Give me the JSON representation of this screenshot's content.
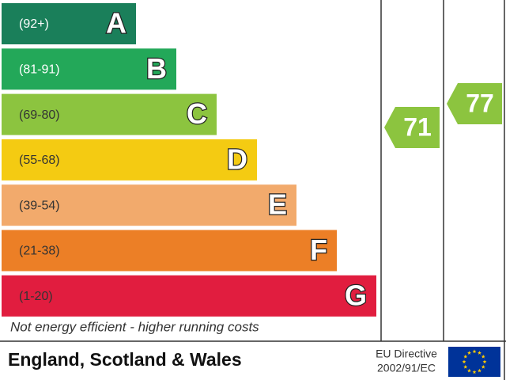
{
  "bands": [
    {
      "range": "(92+)",
      "letter": "A",
      "color": "#1a7f5a",
      "text_color": "#ffffff"
    },
    {
      "range": "(81-91)",
      "letter": "B",
      "color": "#23a859",
      "text_color": "#ffffff"
    },
    {
      "range": "(69-80)",
      "letter": "C",
      "color": "#8cc43f",
      "text_color": "#333333"
    },
    {
      "range": "(55-68)",
      "letter": "D",
      "color": "#f4cb12",
      "text_color": "#333333"
    },
    {
      "range": "(39-54)",
      "letter": "E",
      "color": "#f2aa6c",
      "text_color": "#333333"
    },
    {
      "range": "(21-38)",
      "letter": "F",
      "color": "#ec7f26",
      "text_color": "#333333"
    },
    {
      "range": "(1-20)",
      "letter": "G",
      "color": "#e11d3f",
      "text_color": "#333333"
    }
  ],
  "footer_note": "Not energy efficient - higher running costs",
  "region": "England, Scotland & Wales",
  "directive": [
    "EU Directive",
    "2002/91/EC"
  ],
  "ratings": {
    "current": {
      "value": 71,
      "color": "#8cc43f"
    },
    "potential": {
      "value": 77,
      "color": "#8cc43f"
    }
  }
}
